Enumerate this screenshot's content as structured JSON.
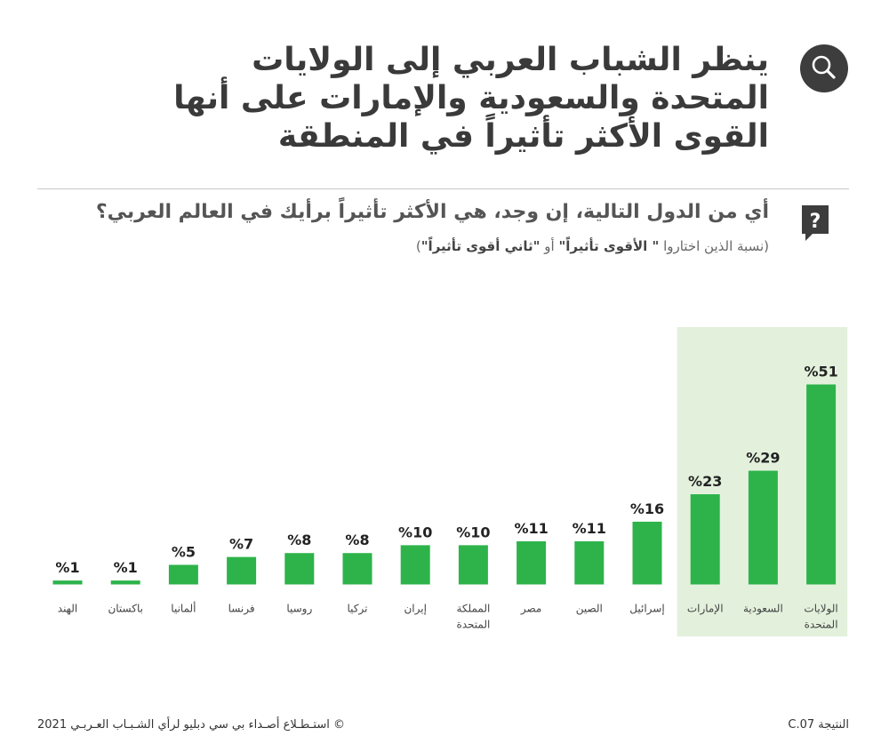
{
  "header": {
    "title": "ينظر الشباب العربي إلى الولايات المتحدة والسعودية والإمارات على أنها القوى الأكثر تأثيراً في المنطقة",
    "question": "أي من الدول التالية، إن وجد، هي الأكثر تأثيراً برأيك في العالم العربي؟",
    "subtitle_prefix": "(نسبة الذين اختاروا ",
    "subtitle_bold1": "\" الأقوى تأثيراً\"",
    "subtitle_mid": " أو ",
    "subtitle_bold2": "\"ثاني أقوى تأثيراً\"",
    "subtitle_suffix": ")"
  },
  "footer": {
    "source": "©  استـطـلاع أصـداء بي سي دبليو لرأي الشـبـاب العـربـي 2021",
    "result_id": "النتيجة C.07"
  },
  "colors": {
    "bar": "#2db34a",
    "highlight": "#e3f1dc",
    "icon_bg": "#3d3d3d"
  },
  "chart_data": {
    "type": "bar",
    "title": "",
    "xlabel": "",
    "ylabel": "",
    "categories": [
      "الهند",
      "باكستان",
      "ألمانيا",
      "فرنسا",
      "روسيا",
      "تركيا",
      "إيران",
      "المملكة المتحدة",
      "مصر",
      "الصين",
      "إسرائيل",
      "الإمارات",
      "السعودية",
      "الولايات المتحدة"
    ],
    "values": [
      1,
      1,
      5,
      7,
      8,
      8,
      10,
      10,
      11,
      11,
      16,
      23,
      29,
      51
    ],
    "value_labels": [
      "%1",
      "%1",
      "%5",
      "%7",
      "%8",
      "%8",
      "%10",
      "%10",
      "%11",
      "%11",
      "%16",
      "%23",
      "%29",
      "%51"
    ],
    "highlighted": [
      "الإمارات",
      "السعودية",
      "الولايات المتحدة"
    ],
    "ylim": [
      0,
      51
    ],
    "grid": false,
    "legend": "none"
  }
}
